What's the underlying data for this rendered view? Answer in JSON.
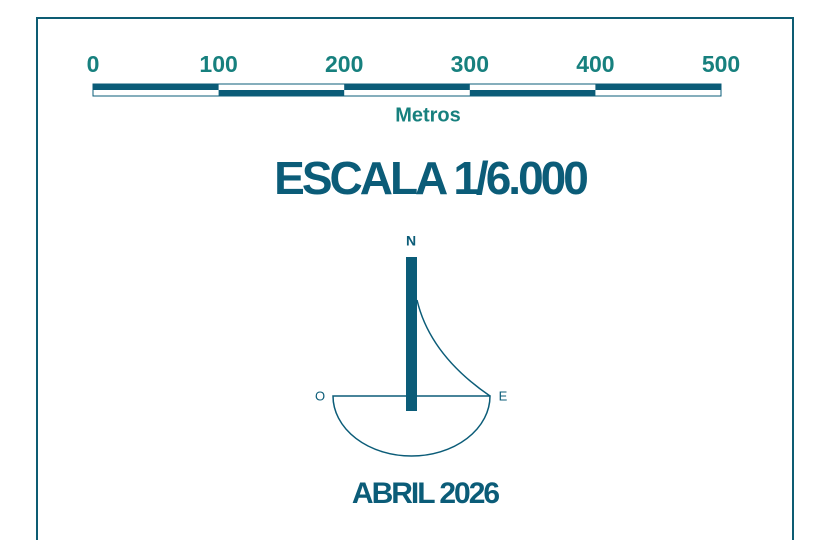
{
  "scale": {
    "ticks": [
      0,
      100,
      200,
      300,
      400,
      500
    ],
    "unit": "Metros"
  },
  "title": "ESCALA 1/6.000",
  "north": {
    "n": "N",
    "west": "O",
    "east": "E"
  },
  "date": "ABRIL 2026"
}
